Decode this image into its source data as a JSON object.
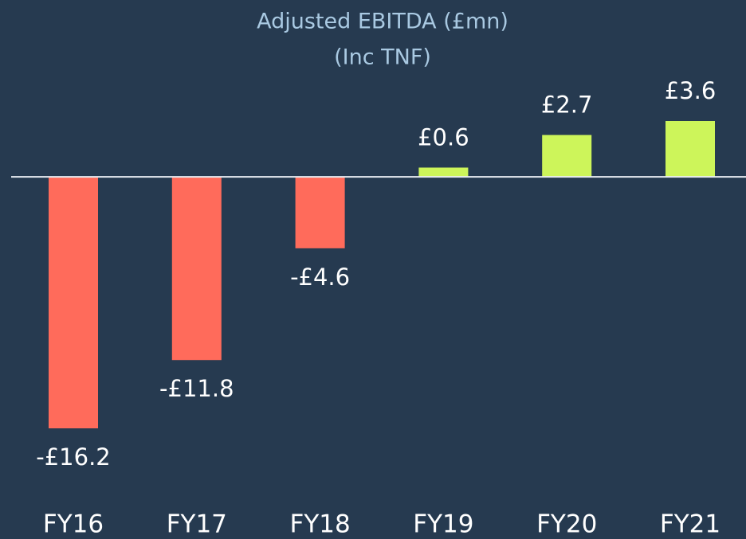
{
  "chart_data": {
    "type": "bar",
    "title": "Adjusted EBITDA (£mn)",
    "subtitle": "(Inc TNF)",
    "categories": [
      "FY16",
      "FY17",
      "FY18",
      "FY19",
      "FY20",
      "FY21"
    ],
    "values": [
      -16.2,
      -11.8,
      -4.6,
      0.6,
      2.7,
      3.6
    ],
    "value_labels": [
      "-£16.2",
      "-£11.8",
      "-£4.6",
      "£0.6",
      "£2.7",
      "£3.6"
    ],
    "colors": [
      "#ff6b5b",
      "#ff6b5b",
      "#ff6b5b",
      "#cdf55a",
      "#cdf55a",
      "#cdf55a"
    ]
  }
}
